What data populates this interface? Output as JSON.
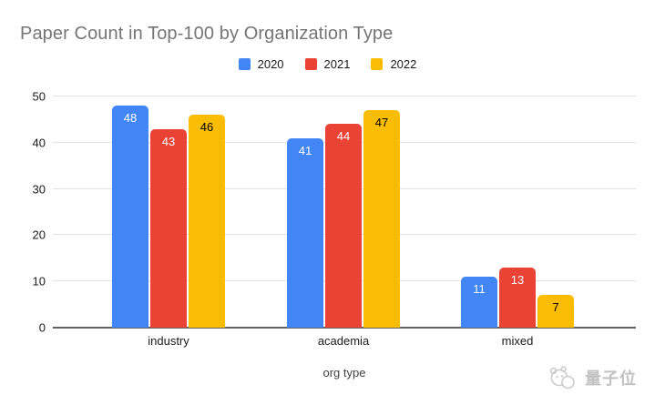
{
  "chart_data": {
    "type": "bar",
    "title": "Paper Count in Top-100 by Organization Type",
    "xlabel": "org type",
    "ylabel": "",
    "categories": [
      "industry",
      "academia",
      "mixed"
    ],
    "series": [
      {
        "name": "2020",
        "color": "#4285F4",
        "label_color": "#FFFFFF",
        "values": [
          48,
          41,
          11
        ]
      },
      {
        "name": "2021",
        "color": "#EA4335",
        "label_color": "#FFFFFF",
        "values": [
          43,
          44,
          13
        ]
      },
      {
        "name": "2022",
        "color": "#FBBC04",
        "label_color": "#000000",
        "values": [
          46,
          47,
          7
        ]
      }
    ],
    "ylim": [
      0,
      50
    ],
    "yticks": [
      0,
      10,
      20,
      30,
      40,
      50
    ],
    "grid": true,
    "legend_position": "top",
    "colors": {
      "title_text": "#757575",
      "axis_text": "#1a1a1a",
      "gridline": "#e2e2e2",
      "baseline": "#616161"
    }
  },
  "watermark": {
    "text": "量子位"
  }
}
